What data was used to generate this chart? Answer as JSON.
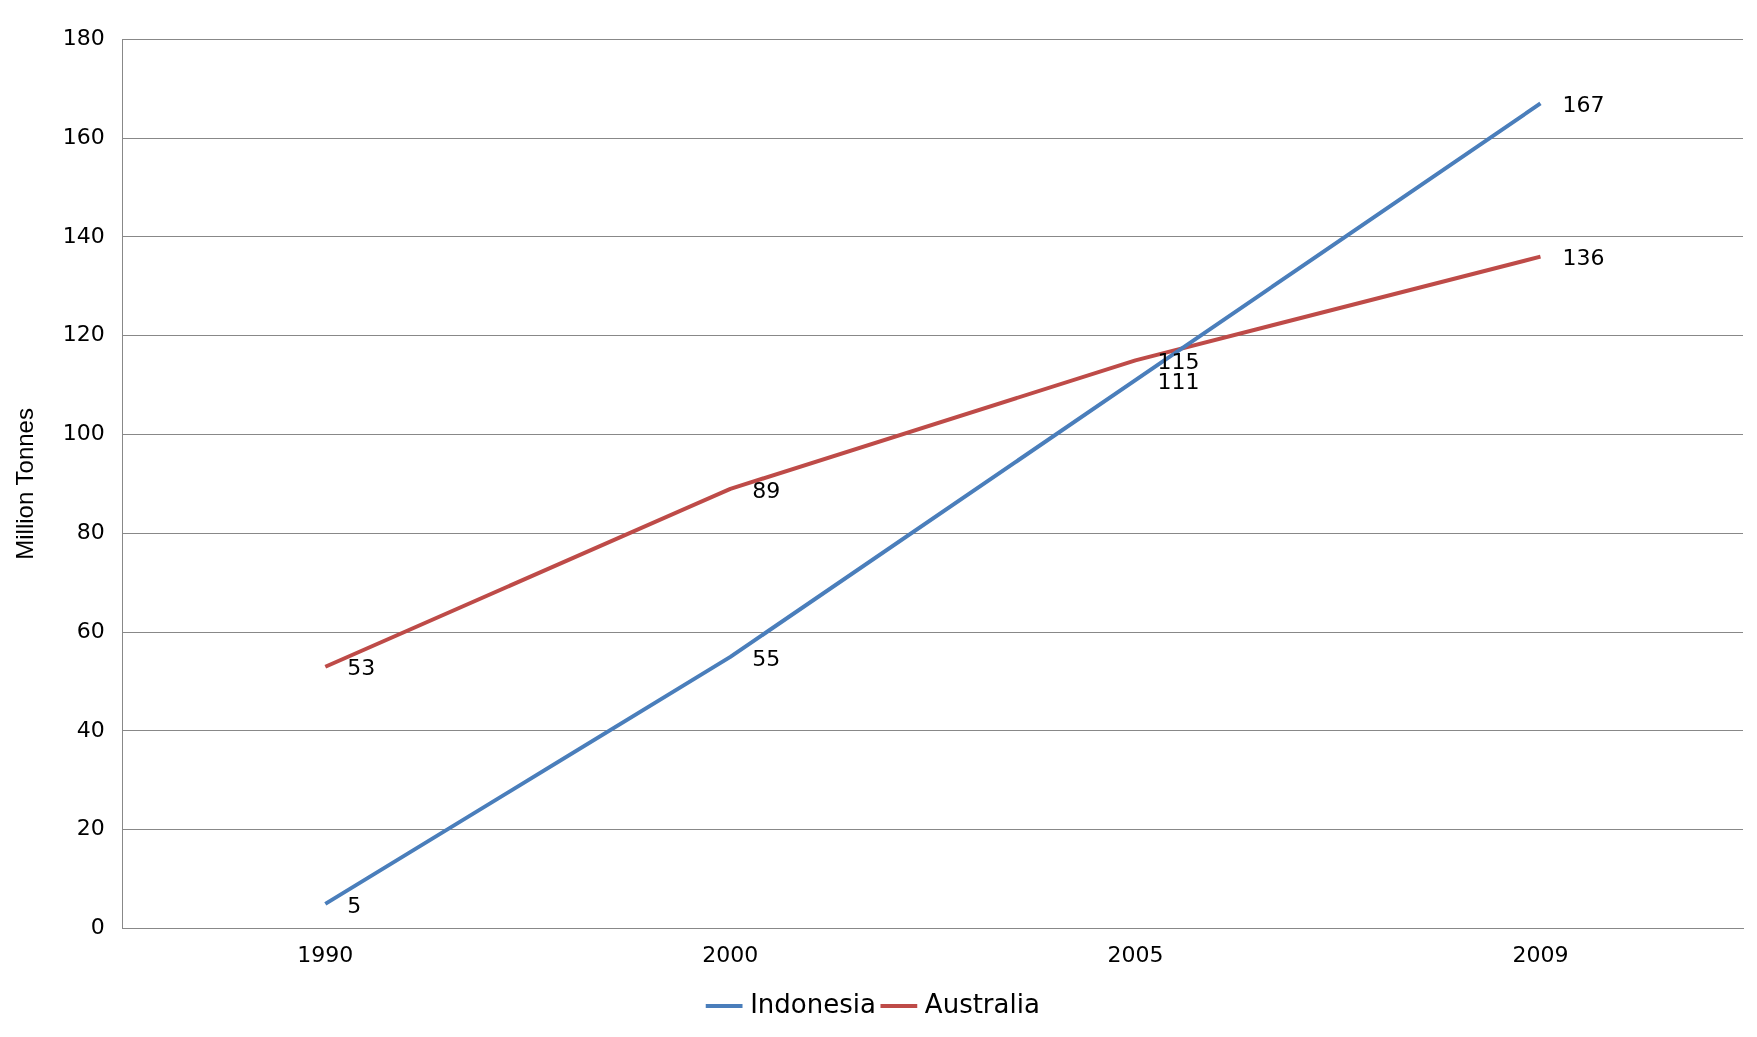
{
  "chart_data": {
    "type": "line",
    "ylabel": "Million Tonnes",
    "categories": [
      "1990",
      "2000",
      "2005",
      "2009"
    ],
    "series": [
      {
        "name": "Indonesia",
        "color": "#4a7ebb",
        "values": [
          5,
          55,
          111,
          167
        ]
      },
      {
        "name": "Australia",
        "color": "#be4b48",
        "values": [
          53,
          89,
          115,
          136
        ]
      }
    ],
    "ylim": [
      0,
      180
    ],
    "yticks": [
      0,
      20,
      40,
      60,
      80,
      100,
      120,
      140,
      160,
      180
    ],
    "grid": "y",
    "legend": "bottom",
    "marker": "none",
    "line_style": "solid",
    "data_labels": true
  }
}
